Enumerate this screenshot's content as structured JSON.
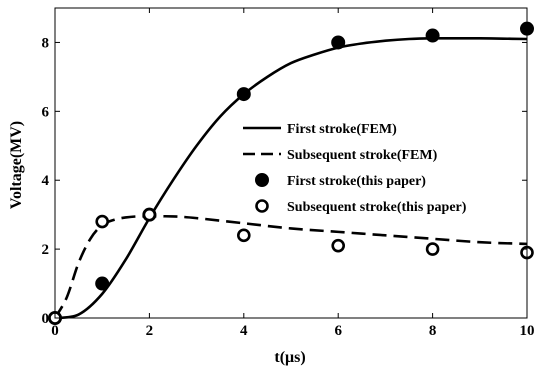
{
  "chart_data": {
    "type": "line",
    "xlabel": "t(μs)",
    "ylabel": "Voltage(MV)",
    "xlim": [
      0,
      10
    ],
    "ylim": [
      0,
      9
    ],
    "xticks": [
      0,
      2,
      4,
      6,
      8,
      10
    ],
    "yticks": [
      0,
      2,
      4,
      6,
      8
    ],
    "grid": false,
    "legend_position": "center-right",
    "series": [
      {
        "name": "First stroke(FEM)",
        "style": "solid-line",
        "color": "#000000",
        "x": [
          0,
          0.5,
          1,
          1.5,
          2,
          2.5,
          3,
          3.5,
          4,
          4.5,
          5,
          5.5,
          6,
          6.5,
          7,
          7.5,
          8,
          8.5,
          9,
          9.5,
          10
        ],
        "y": [
          0,
          0.1,
          0.7,
          1.7,
          2.9,
          4.0,
          5.0,
          5.85,
          6.5,
          7.0,
          7.4,
          7.65,
          7.85,
          7.97,
          8.05,
          8.1,
          8.12,
          8.12,
          8.12,
          8.11,
          8.1
        ]
      },
      {
        "name": "Subsequent stroke(FEM)",
        "style": "dashed-line",
        "color": "#000000",
        "x": [
          0,
          0.25,
          0.5,
          0.75,
          1,
          1.25,
          1.5,
          1.75,
          2,
          2.5,
          3,
          4,
          5,
          6,
          7,
          8,
          9,
          10
        ],
        "y": [
          0,
          0.6,
          1.6,
          2.3,
          2.7,
          2.85,
          2.92,
          2.95,
          2.95,
          2.95,
          2.9,
          2.75,
          2.6,
          2.5,
          2.4,
          2.3,
          2.2,
          2.15
        ]
      },
      {
        "name": "First stroke(this paper)",
        "style": "filled-circle",
        "color": "#000000",
        "x": [
          0,
          1,
          2,
          4,
          6,
          8,
          10
        ],
        "y": [
          0,
          1.0,
          3.0,
          6.5,
          8.0,
          8.2,
          8.4
        ]
      },
      {
        "name": "Subsequent stroke(this paper)",
        "style": "open-circle",
        "color": "#000000",
        "x": [
          0,
          1,
          2,
          4,
          6,
          8,
          10
        ],
        "y": [
          0,
          2.8,
          3.0,
          2.4,
          2.1,
          2.0,
          1.9
        ]
      }
    ]
  }
}
